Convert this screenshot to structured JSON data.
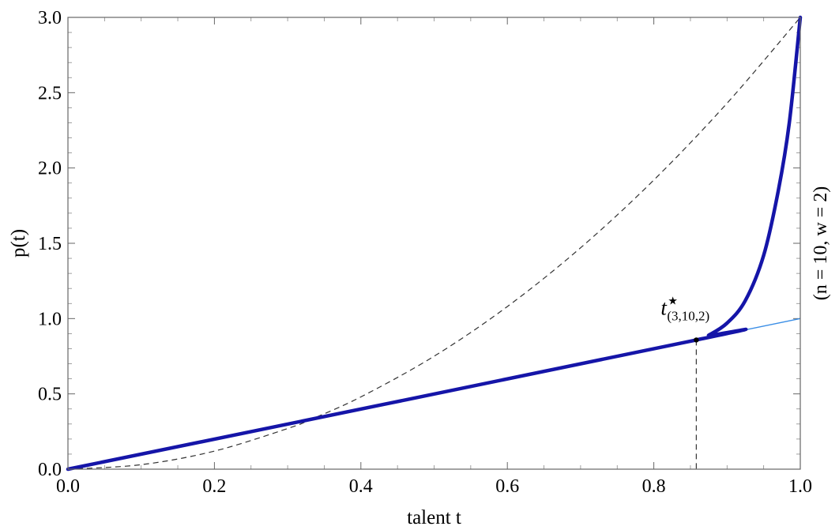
{
  "chart_data": {
    "type": "line",
    "xlabel": "talent t",
    "ylabel": "p(t)",
    "side_label": "(n = 10, w = 2)",
    "xlim": [
      0,
      1
    ],
    "ylim": [
      0,
      3
    ],
    "x_ticks": [
      "0.0",
      "0.2",
      "0.4",
      "0.6",
      "0.8",
      "1.0"
    ],
    "y_ticks": [
      "0.0",
      "0.5",
      "1.0",
      "1.5",
      "2.0",
      "2.5",
      "3.0"
    ],
    "series": [
      {
        "style": "dashed",
        "color": "#333333",
        "x": [
          0,
          0.1,
          0.2,
          0.3,
          0.333,
          0.4,
          0.5,
          0.6,
          0.7,
          0.8,
          0.9,
          1.0
        ],
        "y": [
          0,
          0.03,
          0.12,
          0.27,
          0.333,
          0.48,
          0.75,
          1.08,
          1.47,
          1.92,
          2.43,
          3.0
        ]
      },
      {
        "style": "thin",
        "color": "#3a8ee6",
        "x": [
          0,
          1.0
        ],
        "y": [
          0,
          1.0
        ]
      },
      {
        "style": "thick",
        "color": "#1515a8",
        "x": [
          0,
          0.858,
          0.875,
          0.9,
          0.925,
          0.95,
          0.97,
          0.985,
          1.0
        ],
        "y": [
          0,
          0.858,
          0.89,
          0.97,
          1.12,
          1.42,
          1.85,
          2.3,
          3.0
        ]
      }
    ],
    "marker": {
      "x": 0.858,
      "y": 0.858
    },
    "annotation": {
      "main": "t",
      "sup": "★",
      "sub": "(3,10,2)"
    }
  }
}
